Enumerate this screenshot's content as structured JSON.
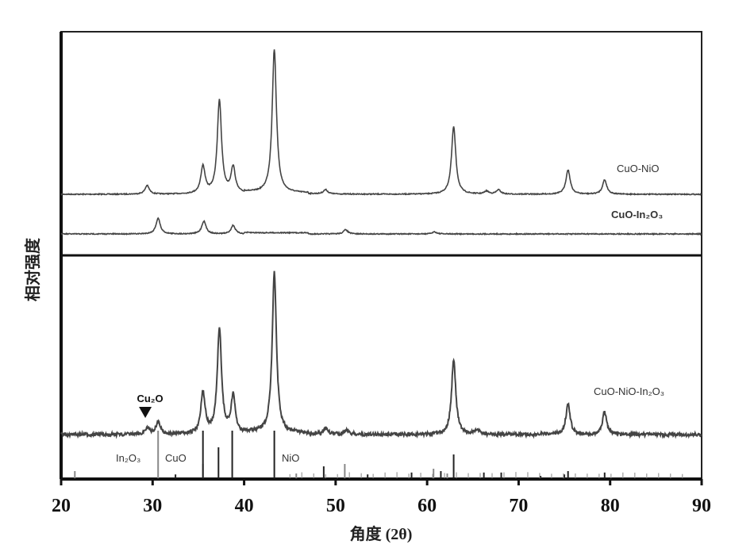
{
  "chart_data": {
    "type": "line",
    "xlabel": "角度 (2θ)",
    "ylabel": "相对强度",
    "xlim": [
      20,
      90
    ],
    "xticks": [
      20,
      30,
      40,
      50,
      60,
      70,
      80,
      90
    ],
    "grid": false,
    "panels": [
      {
        "series": [
          {
            "name": "CuO-NiO",
            "color": "#444444",
            "peaks": [
              [
                29.4,
                6
              ],
              [
                35.5,
                19
              ],
              [
                37.3,
                65
              ],
              [
                38.8,
                18
              ],
              [
                43.3,
                100
              ],
              [
                48.9,
                3
              ],
              [
                62.9,
                47
              ],
              [
                66.5,
                2
              ],
              [
                67.8,
                3
              ],
              [
                75.4,
                17
              ],
              [
                79.4,
                10
              ]
            ]
          },
          {
            "name": "CuO-In₂O₃",
            "color": "#444444",
            "peaks": [
              [
                30.6,
                11
              ],
              [
                35.6,
                9
              ],
              [
                38.8,
                6
              ],
              [
                51.1,
                3
              ],
              [
                60.8,
                1.5
              ]
            ]
          }
        ]
      },
      {
        "series": [
          {
            "name": "CuO-NiO-In₂O₃",
            "color": "#444444",
            "peaks": [
              [
                29.4,
                4
              ],
              [
                30.6,
                8
              ],
              [
                35.5,
                26
              ],
              [
                37.3,
                65
              ],
              [
                38.8,
                23
              ],
              [
                43.3,
                100
              ],
              [
                48.9,
                4
              ],
              [
                51.2,
                3
              ],
              [
                62.9,
                46
              ],
              [
                65.5,
                3
              ],
              [
                75.4,
                19
              ],
              [
                79.4,
                14
              ]
            ]
          }
        ],
        "annotation": {
          "label": "Cu₂O",
          "x": 29.2,
          "marker": "down-triangle"
        },
        "reference_patterns": [
          {
            "name": "In₂O₃",
            "color": "#888888",
            "lines": [
              [
                21.5,
                15
              ],
              [
                30.6,
                100
              ],
              [
                35.5,
                30
              ],
              [
                45.7,
                10
              ],
              [
                51.0,
                30
              ],
              [
                60.7,
                20
              ],
              [
                62.2,
                10
              ]
            ]
          },
          {
            "name": "CuO",
            "color": "#222222",
            "lines": [
              [
                32.5,
                8
              ],
              [
                35.5,
                100
              ],
              [
                38.7,
                100
              ],
              [
                48.7,
                25
              ],
              [
                53.5,
                8
              ],
              [
                58.3,
                12
              ],
              [
                61.5,
                15
              ],
              [
                66.2,
                12
              ],
              [
                68.1,
                12
              ],
              [
                72.4,
                5
              ],
              [
                75.0,
                8
              ]
            ]
          },
          {
            "name": "NiO",
            "color": "#222222",
            "lines": [
              [
                37.2,
                65
              ],
              [
                43.3,
                100
              ],
              [
                62.9,
                50
              ],
              [
                75.4,
                15
              ],
              [
                79.4,
                12
              ]
            ]
          }
        ]
      }
    ]
  }
}
